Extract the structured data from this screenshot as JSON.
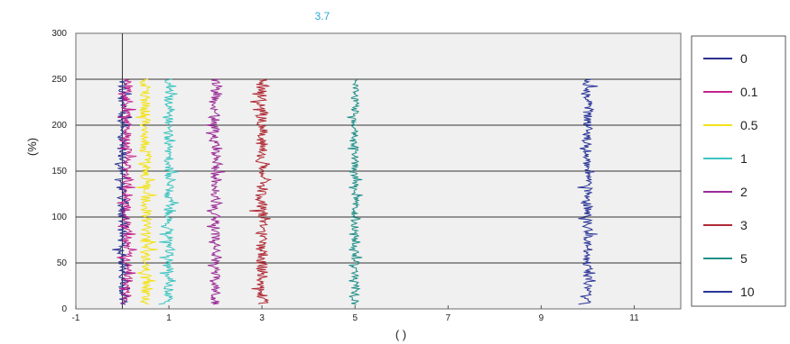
{
  "chart_data": {
    "type": "line",
    "title": "3.7",
    "title_color": "#29a8d8",
    "xlabel": "(    )",
    "ylabel": "(%)",
    "xlim": [
      -1,
      12
    ],
    "ylim": [
      0,
      300
    ],
    "x_ticks": [
      -1,
      1,
      3,
      5,
      7,
      9,
      11
    ],
    "y_ticks": [
      0,
      50,
      100,
      150,
      200,
      250,
      300
    ],
    "x_tick_labels": [
      "-1",
      "1",
      "3",
      "5",
      "7",
      "9",
      "11"
    ],
    "y_tick_labels": [
      "0",
      "50",
      "100",
      "150",
      "200",
      "250",
      "300"
    ],
    "grid": "horizontal",
    "legend_position": "right",
    "reference_line_x": 0,
    "plot_background": "#f0f0f0",
    "series": [
      {
        "name": "0",
        "color": "#2a2f8f",
        "x_center": 0,
        "y_range": [
          5,
          250
        ],
        "spread": 0.1
      },
      {
        "name": "0.1",
        "color": "#c4238c",
        "x_center": 0.1,
        "y_range": [
          5,
          250
        ],
        "spread": 0.1
      },
      {
        "name": "0.5",
        "color": "#f2e21a",
        "x_center": 0.5,
        "y_range": [
          5,
          250
        ],
        "spread": 0.12
      },
      {
        "name": "1",
        "color": "#3cc4c0",
        "x_center": 1,
        "y_range": [
          5,
          250
        ],
        "spread": 0.1
      },
      {
        "name": "2",
        "color": "#9a2b96",
        "x_center": 2,
        "y_range": [
          5,
          250
        ],
        "spread": 0.1
      },
      {
        "name": "3",
        "color": "#b02a35",
        "x_center": 3,
        "y_range": [
          5,
          250
        ],
        "spread": 0.13
      },
      {
        "name": "5",
        "color": "#1f8f88",
        "x_center": 5,
        "y_range": [
          5,
          250
        ],
        "spread": 0.08
      },
      {
        "name": "10",
        "color": "#2a3598",
        "x_center": 10,
        "y_range": [
          5,
          250
        ],
        "spread": 0.1
      }
    ]
  }
}
